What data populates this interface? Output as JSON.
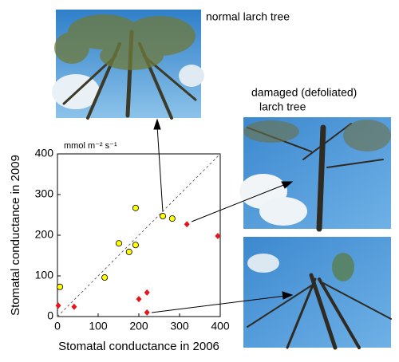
{
  "chart_data": {
    "type": "scatter",
    "unit_label": "mmol m⁻² s⁻¹",
    "x_label": "Stomatal conductance in 2006",
    "y_label": "Stomatal conductance in 2009",
    "annotations": [
      "normal larch tree",
      "damaged (defoliated)",
      "larch tree"
    ],
    "annotation_colors": [
      "#000000",
      "#e8141b",
      "#e8141b"
    ],
    "xlim": [
      0,
      400
    ],
    "ylim": [
      0,
      400
    ],
    "xticks": [
      0,
      100,
      200,
      300,
      400
    ],
    "yticks": [
      0,
      100,
      200,
      300,
      400
    ],
    "reference_line": true,
    "grid": false,
    "series": [
      {
        "color": "#ffff00",
        "marker": "circle",
        "x": [
          6,
          116,
          151,
          176,
          192,
          192,
          259,
          282
        ],
        "values": [
          73,
          96,
          180,
          159,
          176,
          267,
          247,
          241
        ]
      },
      {
        "color": "#e8141b",
        "marker": "diamond",
        "x": [
          2,
          41,
          200,
          220,
          220,
          318,
          394
        ],
        "values": [
          27,
          24,
          43,
          59,
          10,
          227,
          198
        ]
      }
    ]
  }
}
